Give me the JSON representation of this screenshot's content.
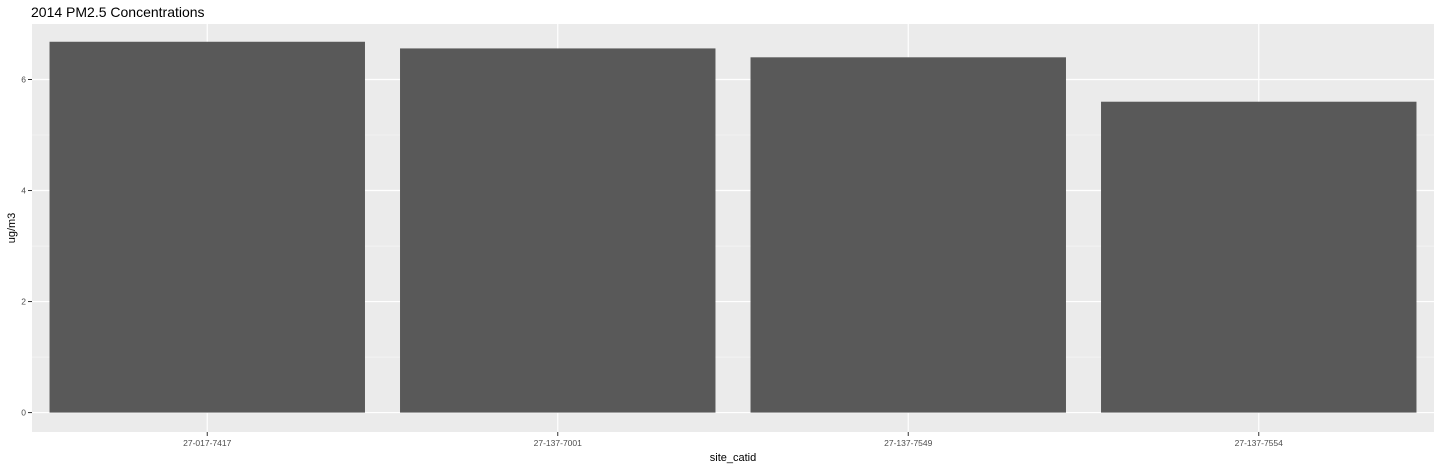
{
  "chart_data": {
    "type": "bar",
    "title": "2014 PM2.5 Concentrations",
    "xlabel": "site_catid",
    "ylabel": "ug/m3",
    "categories": [
      "27-017-7417",
      "27-137-7001",
      "27-137-7549",
      "27-137-7554"
    ],
    "values": [
      6.68,
      6.56,
      6.4,
      5.6
    ],
    "ylim": [
      -0.35,
      7.0
    ],
    "yticks": [
      0,
      2,
      4,
      6
    ],
    "ytick_labels": [
      "0",
      "2",
      "4",
      "6"
    ],
    "grid": true,
    "colors": {
      "bar": "#595959",
      "panel": "#ebebeb",
      "grid_major": "#ffffff",
      "grid_minor": "#f5f5f5"
    }
  }
}
